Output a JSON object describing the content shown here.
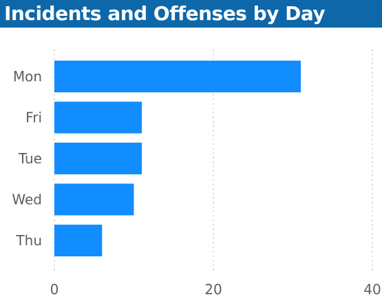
{
  "title": "Incidents and Offenses by Day",
  "colors": {
    "title_bg": "#0d67a8",
    "title_text": "#ffffff",
    "bar": "#118dff",
    "gridline": "#c8c6c4",
    "label_text": "#605e5c"
  },
  "chart_data": {
    "type": "bar",
    "orientation": "horizontal",
    "title": "Incidents and Offenses by Day",
    "xlabel": "",
    "ylabel": "",
    "categories": [
      "Mon",
      "Fri",
      "Tue",
      "Wed",
      "Thu"
    ],
    "values": [
      31,
      11,
      11,
      10,
      6
    ],
    "xlim": [
      0,
      40
    ],
    "xticks": [
      0,
      20,
      40
    ],
    "xtick_labels": [
      "0",
      "20",
      "40"
    ],
    "grid": "vertical dotted",
    "legend": "none"
  }
}
